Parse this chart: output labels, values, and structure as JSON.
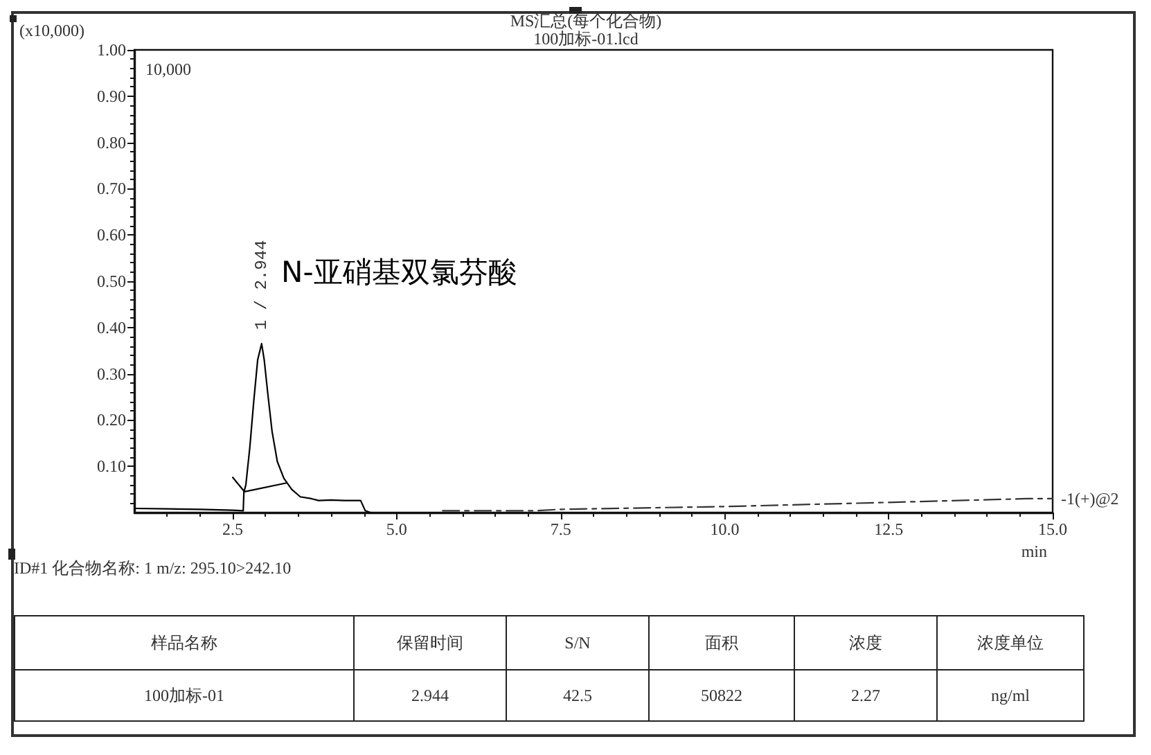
{
  "chart_data": [
    {
      "type": "line",
      "title": "MS汇总(每个化合物)",
      "subtitle": "100加标-01.lcd",
      "xlabel": "min",
      "ylabel": "(x10,000)",
      "xlim": [
        1.0,
        15.0
      ],
      "ylim": [
        0,
        1.0
      ],
      "xticks": [
        {
          "value": 1.5,
          "label": null
        },
        {
          "value": 2,
          "label": null
        },
        2.5,
        {
          "value": 3,
          "label": null
        },
        {
          "value": 3.5,
          "label": null
        },
        {
          "value": 4,
          "label": null
        },
        {
          "value": 4.5,
          "label": null
        },
        {
          "value": 5,
          "label": "5.0"
        },
        {
          "value": 5.5,
          "label": null
        },
        {
          "value": 6,
          "label": null
        },
        {
          "value": 6.5,
          "label": null
        },
        {
          "value": 7,
          "label": null
        },
        7.5,
        {
          "value": 8,
          "label": null
        },
        {
          "value": 8.5,
          "label": null
        },
        {
          "value": 9,
          "label": null
        },
        {
          "value": 9.5,
          "label": null
        },
        {
          "value": 10,
          "label": "10.0"
        },
        {
          "value": 10.5,
          "label": null
        },
        {
          "value": 11,
          "label": null
        },
        {
          "value": 11.5,
          "label": null
        },
        {
          "value": 12,
          "label": null
        },
        12.5,
        {
          "value": 13,
          "label": null
        },
        {
          "value": 13.5,
          "label": null
        },
        {
          "value": 14,
          "label": null
        },
        {
          "value": 14.5,
          "label": null
        },
        {
          "value": 15,
          "label": "15.0"
        }
      ],
      "yticks": [
        {
          "value": 0.02,
          "label": null
        },
        {
          "value": 0.04,
          "label": null
        },
        {
          "value": 0.06,
          "label": null
        },
        {
          "value": 0.08,
          "label": null
        },
        {
          "value": 0.1,
          "label": "0.10"
        },
        {
          "value": 0.12,
          "label": null
        },
        {
          "value": 0.14,
          "label": null
        },
        {
          "value": 0.16,
          "label": null
        },
        {
          "value": 0.18,
          "label": null
        },
        {
          "value": 0.2,
          "label": "0.20"
        },
        {
          "value": 0.22,
          "label": null
        },
        {
          "value": 0.24,
          "label": null
        },
        {
          "value": 0.26,
          "label": null
        },
        {
          "value": 0.28,
          "label": null
        },
        {
          "value": 0.3,
          "label": "0.30"
        },
        {
          "value": 0.32,
          "label": null
        },
        {
          "value": 0.34,
          "label": null
        },
        {
          "value": 0.36,
          "label": null
        },
        {
          "value": 0.38,
          "label": null
        },
        {
          "value": 0.4,
          "label": "0.40"
        },
        {
          "value": 0.42,
          "label": null
        },
        {
          "value": 0.44,
          "label": null
        },
        {
          "value": 0.46,
          "label": null
        },
        {
          "value": 0.48,
          "label": null
        },
        {
          "value": 0.5,
          "label": "0.50"
        },
        {
          "value": 0.52,
          "label": null
        },
        {
          "value": 0.54,
          "label": null
        },
        {
          "value": 0.56,
          "label": null
        },
        {
          "value": 0.58,
          "label": null
        },
        {
          "value": 0.6,
          "label": "0.60"
        },
        {
          "value": 0.62,
          "label": null
        },
        {
          "value": 0.64,
          "label": null
        },
        {
          "value": 0.66,
          "label": null
        },
        {
          "value": 0.68,
          "label": null
        },
        {
          "value": 0.7,
          "label": "0.70"
        },
        {
          "value": 0.72,
          "label": null
        },
        {
          "value": 0.74,
          "label": null
        },
        {
          "value": 0.76,
          "label": null
        },
        {
          "value": 0.78,
          "label": null
        },
        {
          "value": 0.8,
          "label": "0.80"
        },
        {
          "value": 0.82,
          "label": null
        },
        {
          "value": 0.84,
          "label": null
        },
        {
          "value": 0.86,
          "label": null
        },
        {
          "value": 0.88,
          "label": null
        },
        {
          "value": 0.9,
          "label": "0.90"
        },
        {
          "value": 0.92,
          "label": null
        },
        {
          "value": 0.94,
          "label": null
        },
        {
          "value": 0.96,
          "label": null
        },
        {
          "value": 0.98,
          "label": null
        },
        {
          "value": 1.0,
          "label": "1.00"
        }
      ],
      "marker": "none",
      "series": [
        {
          "color": "#000000",
          "x": [
            1.0,
            1.5,
            2.0,
            2.5,
            2.66,
            2.67,
            2.7,
            2.76,
            2.82,
            2.88,
            2.94,
            2.98,
            3.04,
            3.1,
            3.18,
            3.28,
            3.4,
            3.53,
            3.7,
            3.81,
            4.0,
            4.2,
            4.45,
            4.52,
            4.6
          ],
          "values": [
            0.009,
            0.008,
            0.007,
            0.005,
            0.004,
            0.044,
            0.06,
            0.14,
            0.24,
            0.33,
            0.365,
            0.33,
            0.25,
            0.175,
            0.11,
            0.074,
            0.05,
            0.034,
            0.03,
            0.026,
            0.027,
            0.026,
            0.026,
            0.004,
            0.0
          ]
        },
        {
          "color": "#000000",
          "x": [
            2.5,
            2.68,
            3.32
          ],
          "values": [
            0.076,
            0.045,
            0.064
          ]
        },
        {
          "color": "#333333",
          "line_style": "dashed",
          "x": [
            5.7,
            7.1,
            7.5,
            10.0,
            12.5,
            14.6,
            15.0
          ],
          "values": [
            0.004,
            0.004,
            0.007,
            0.013,
            0.022,
            0.03,
            0.03
          ]
        }
      ],
      "annotations": [
        "10,000",
        {
          "text": "1 / 2.944",
          "x": 2.94,
          "y": 0.365
        },
        "N-亚硝基双氯芬酸",
        {
          "text": "-1(+)@2",
          "x": 15.0,
          "y": 0.03
        },
        "ID#1 化合物名称: 1 m/z: 295.10>242.10"
      ]
    },
    {
      "type": "other",
      "categories": [
        "样品名称",
        "保留时间",
        "S/N",
        "面积",
        "浓度",
        "浓度单位"
      ],
      "annotations": [
        "100加标-01",
        "2.944",
        "42.5",
        "50822",
        "2.27",
        "ng/ml"
      ]
    }
  ]
}
